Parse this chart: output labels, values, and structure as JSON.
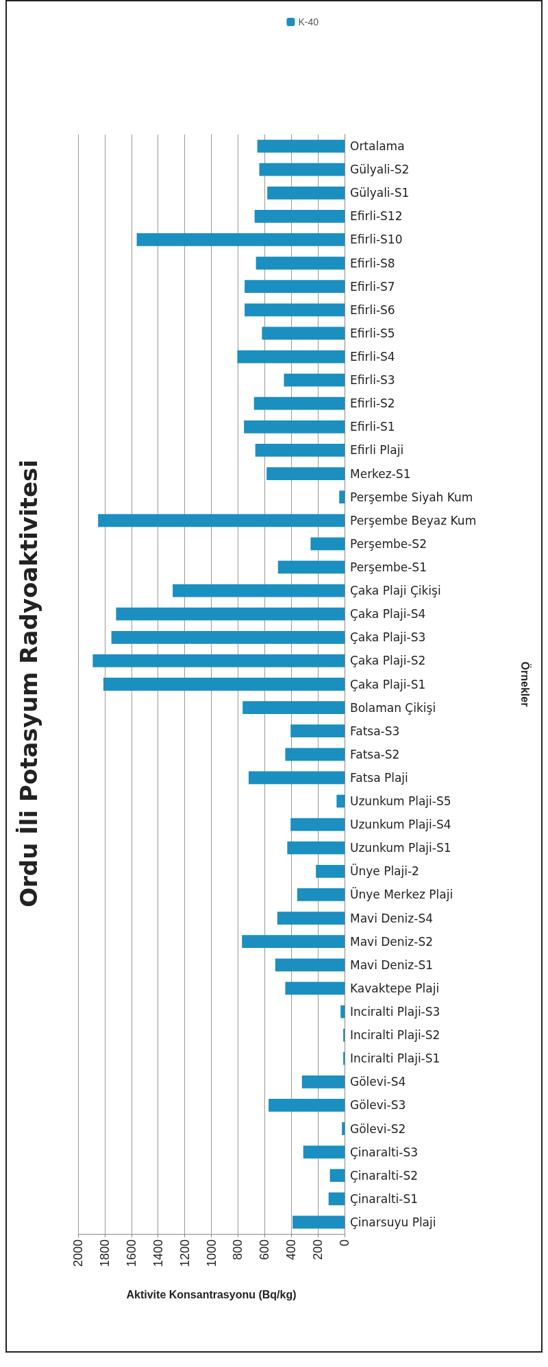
{
  "chart_data": {
    "type": "bar",
    "orientation": "horizontal",
    "title": "Ordu İli Potasyum Radyoaktivitesi",
    "xlabel": "Aktivite Konsantrasyonu (Bq/kg)",
    "ylabel": "Örnekler",
    "categories": [
      "Ortalama",
      "Gülyali-S2",
      "Gülyali-S1",
      "Efirli-S12",
      "Efirli-S10",
      "Efirli-S8",
      "Efirli-S7",
      "Efirli-S6",
      "Efirli-S5",
      "Efirli-S4",
      "Efirli-S3",
      "Efirli-S2",
      "Efirli-S1",
      "Efirli Plaji",
      "Merkez-S1",
      "Perşembe Siyah Kum",
      "Perşembe Beyaz Kum",
      "Perşembe-S2",
      "Perşembe-S1",
      "Çaka Plaji Çikişi",
      "Çaka Plaji-S4",
      "Çaka Plaji-S3",
      "Çaka Plaji-S2",
      "Çaka Plaji-S1",
      "Bolaman Çikişi",
      "Fatsa-S3",
      "Fatsa-S2",
      "Fatsa Plaji",
      "Uzunkum Plaji-S5",
      "Uzunkum Plaji-S4",
      "Uzunkum Plaji-S1",
      "Ünye Plaji-2",
      "Ünye Merkez Plaji",
      "Mavi Deniz-S4",
      "Mavi Deniz-S2",
      "Mavi Deniz-S1",
      "Kavaktepe Plaji",
      "Inciralti Plaji-S3",
      "Inciralti Plaji-S2",
      "Inciralti Plaji-S1",
      "Gölevi-S4",
      "Gölevi-S3",
      "Gölevi-S2",
      "Çinaralti-S3",
      "Çinaralti-S2",
      "Çinaralti-S1",
      "Çinarsuyu Plaji"
    ],
    "series": [
      {
        "name": "K-40",
        "color": "#1a8fc0",
        "values": [
          655,
          640,
          580,
          675,
          1560,
          665,
          750,
          750,
          620,
          805,
          455,
          680,
          755,
          670,
          585,
          40,
          1850,
          255,
          500,
          1290,
          1715,
          1750,
          1890,
          1810,
          765,
          405,
          445,
          720,
          60,
          405,
          430,
          215,
          355,
          505,
          770,
          520,
          445,
          30,
          10,
          10,
          320,
          570,
          20,
          310,
          110,
          120,
          390
        ]
      }
    ],
    "xlim": [
      2000,
      0
    ],
    "xticks": [
      0,
      200,
      400,
      600,
      800,
      1000,
      1200,
      1400,
      1600,
      1800,
      2000
    ],
    "grid": "x",
    "legend": "top right"
  }
}
